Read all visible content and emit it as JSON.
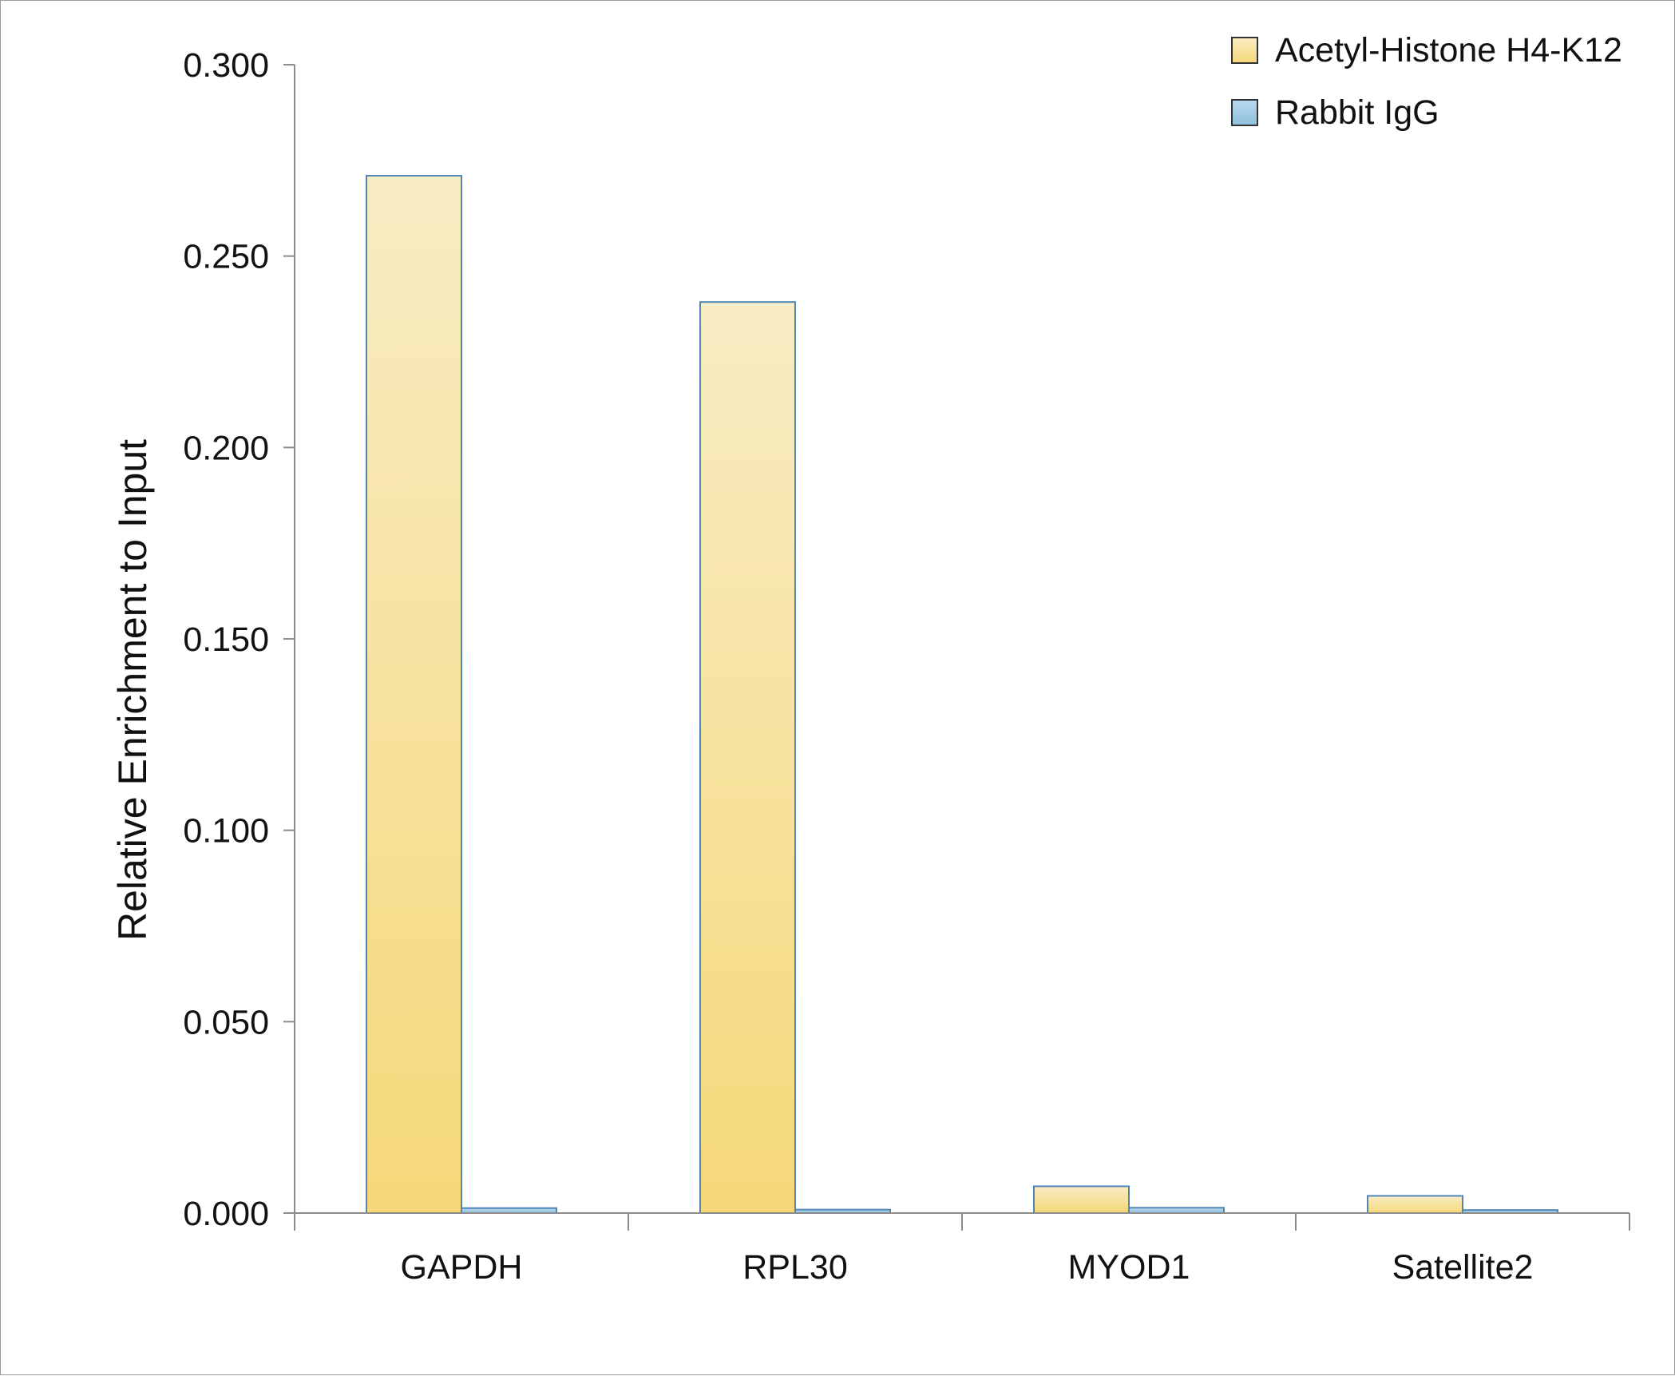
{
  "chart_data": {
    "type": "bar",
    "title": "",
    "xlabel": "",
    "ylabel": "Relative Enrichment to Input",
    "ylim": [
      0,
      0.3
    ],
    "yticks": [
      "0.000",
      "0.050",
      "0.100",
      "0.150",
      "0.200",
      "0.250",
      "0.300"
    ],
    "categories": [
      "GAPDH",
      "RPL30",
      "MYOD1",
      "Satellite2"
    ],
    "series": [
      {
        "name": "Acetyl-Histone H4-K12",
        "values": [
          0.271,
          0.238,
          0.007,
          0.0045
        ],
        "color": "#f6d879",
        "color_top": "#f8ecc4"
      },
      {
        "name": "Rabbit IgG",
        "values": [
          0.0013,
          0.0009,
          0.0014,
          0.0008
        ],
        "color": "#8fbfdc",
        "color_top": "#b9daee"
      }
    ],
    "grid": false,
    "legend": "top-right",
    "bar_outline": "#4f86b8"
  }
}
